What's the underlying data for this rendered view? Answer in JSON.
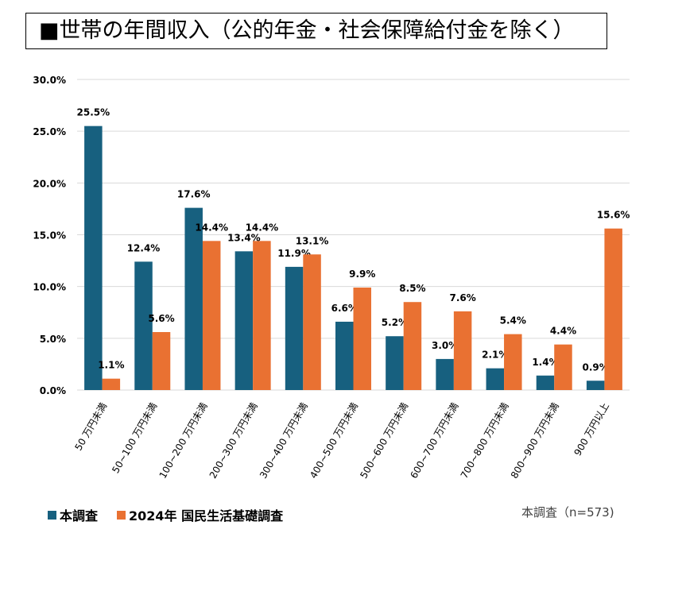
{
  "title": "■世帯の年間収入（公的年金・社会保障給付金を除く）",
  "note": "本調査（n=573)",
  "colors": {
    "series1": "#17607f",
    "series2": "#e97132"
  },
  "chart_data": {
    "type": "bar",
    "categories": [
      "50 万円未満",
      "50~100 万円未満",
      "100~200 万円未満",
      "200~300 万円未満",
      "300~400 万円未満",
      "400~500 万円未満",
      "500~600 万円未満",
      "600~700 万円未満",
      "700~800 万円未満",
      "800~900 万円未満",
      "900 万円以上"
    ],
    "series": [
      {
        "name": "本調査",
        "values": [
          25.5,
          12.4,
          17.6,
          13.4,
          11.9,
          6.6,
          5.2,
          3.0,
          2.1,
          1.4,
          0.9
        ]
      },
      {
        "name": "2024年 国民生活基礎調査",
        "values": [
          1.1,
          5.6,
          14.4,
          14.4,
          13.1,
          9.9,
          8.5,
          7.6,
          5.4,
          4.4,
          15.6
        ]
      }
    ],
    "ylim": [
      0,
      30
    ],
    "yticks": [
      "0.0%",
      "5.0%",
      "10.0%",
      "15.0%",
      "20.0%",
      "25.0%",
      "30.0%"
    ],
    "grid": true,
    "legend": "bottom-left"
  }
}
